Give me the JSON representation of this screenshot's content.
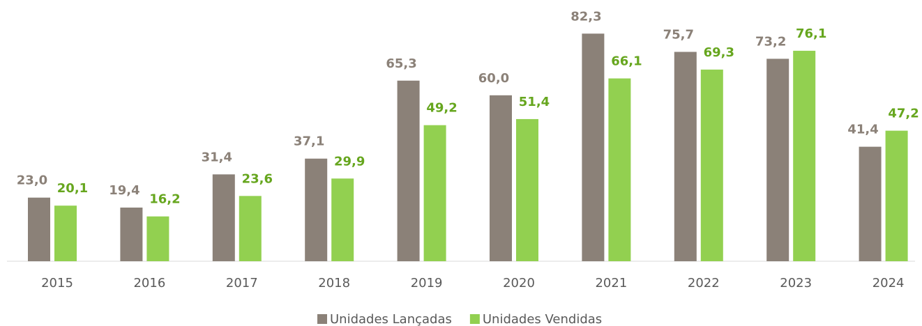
{
  "chart_data": {
    "type": "bar",
    "categories": [
      "2015",
      "2016",
      "2017",
      "2018",
      "2019",
      "2020",
      "2021",
      "2022",
      "2023",
      "2024"
    ],
    "series": [
      {
        "name": "Unidades Lançadas",
        "color": "#8b8178",
        "label_color": "#8b8178",
        "values": [
          23.0,
          19.4,
          31.4,
          37.1,
          65.3,
          60.0,
          82.3,
          75.7,
          73.2,
          41.4
        ],
        "value_labels": [
          "23,0",
          "19,4",
          "31,4",
          "37,1",
          "65,3",
          "60,0",
          "82,3",
          "75,7",
          "73,2",
          "41,4"
        ]
      },
      {
        "name": "Unidades Vendidas",
        "color": "#92d050",
        "label_color": "#66a61e",
        "values": [
          20.1,
          16.2,
          23.6,
          29.9,
          49.2,
          51.4,
          66.1,
          69.3,
          76.1,
          47.2
        ],
        "value_labels": [
          "20,1",
          "16,2",
          "23,6",
          "29,9",
          "49,2",
          "51,4",
          "66,1",
          "69,3",
          "76,1",
          "47,2"
        ]
      }
    ],
    "legend": "bottom"
  }
}
